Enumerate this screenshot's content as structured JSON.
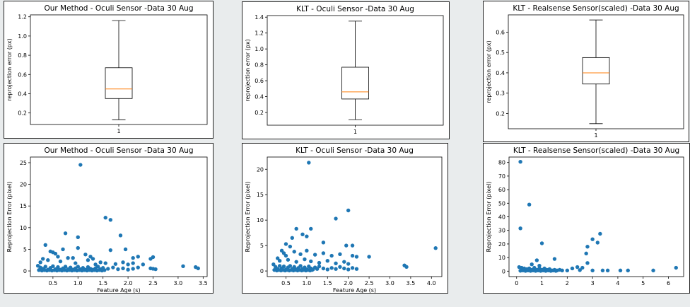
{
  "chart_data": [
    {
      "type": "box",
      "title": "Our Method - Oculi Sensor -Data 30 Aug",
      "ylabel": "reprojection error (px)",
      "xlabel": "",
      "xticks": [
        "1"
      ],
      "ylim": [
        0.08,
        1.22
      ],
      "yticks": [
        "0.2",
        "0.4",
        "0.6",
        "0.8",
        "1.0",
        "1.2"
      ],
      "box": {
        "whisker_low": 0.13,
        "q1": 0.35,
        "median": 0.45,
        "q3": 0.67,
        "whisker_high": 1.16
      }
    },
    {
      "type": "box",
      "title": "KLT - Oculi Sensor -Data 30 Aug",
      "ylabel": "reprojection error (px)",
      "xlabel": "",
      "xticks": [
        "1"
      ],
      "ylim": [
        0.04,
        1.42
      ],
      "yticks": [
        "0.2",
        "0.4",
        "0.6",
        "0.8",
        "1.0",
        "1.2",
        "1.4"
      ],
      "box": {
        "whisker_low": 0.11,
        "q1": 0.37,
        "median": 0.46,
        "q3": 0.77,
        "whisker_high": 1.35
      }
    },
    {
      "type": "box",
      "title": "KLT - Realsense Sensor(scaled) -Data 30 Aug",
      "ylabel": "reprojection error (px)",
      "xlabel": "",
      "xticks": [
        "1"
      ],
      "ylim": [
        0.125,
        0.685
      ],
      "yticks": [
        "0.2",
        "0.3",
        "0.4",
        "0.5",
        "0.6"
      ],
      "box": {
        "whisker_low": 0.15,
        "q1": 0.345,
        "median": 0.4,
        "q3": 0.475,
        "whisker_high": 0.66
      }
    },
    {
      "type": "scatter",
      "title": "Our Method - Oculi Sensor -Data 30 Aug",
      "xlabel": "Feature Age (s)",
      "ylabel": "Reprojection Error (pixel)",
      "xlim": [
        0.05,
        3.58
      ],
      "ylim": [
        -1.3,
        26.3
      ],
      "xticks": [
        "0.5",
        "1.0",
        "1.5",
        "2.0",
        "2.5",
        "3.0",
        "3.5"
      ],
      "yticks": [
        "0",
        "5",
        "10",
        "15",
        "20",
        "25"
      ],
      "points": [
        [
          1.05,
          24.5
        ],
        [
          1.55,
          12.3
        ],
        [
          1.65,
          11.8
        ],
        [
          1.85,
          8.2
        ],
        [
          0.75,
          8.7
        ],
        [
          1.0,
          7.8
        ],
        [
          1.95,
          5.0
        ],
        [
          1.0,
          5.3
        ],
        [
          0.35,
          6.0
        ],
        [
          0.45,
          4.5
        ],
        [
          0.5,
          4.3
        ],
        [
          0.55,
          4.0
        ],
        [
          0.6,
          3.3
        ],
        [
          0.7,
          5.0
        ],
        [
          0.8,
          3.0
        ],
        [
          0.9,
          3.0
        ],
        [
          1.15,
          3.8
        ],
        [
          1.25,
          3.3
        ],
        [
          1.3,
          2.8
        ],
        [
          1.2,
          2.5
        ],
        [
          1.45,
          2.0
        ],
        [
          1.65,
          4.8
        ],
        [
          2.1,
          3.0
        ],
        [
          2.2,
          3.3
        ],
        [
          2.45,
          2.8
        ],
        [
          2.5,
          3.2
        ],
        [
          0.3,
          2.8
        ],
        [
          0.25,
          2.0
        ],
        [
          0.4,
          2.5
        ],
        [
          0.65,
          2.2
        ],
        [
          0.95,
          1.8
        ],
        [
          1.35,
          1.5
        ],
        [
          1.55,
          1.8
        ],
        [
          1.75,
          1.6
        ],
        [
          1.9,
          2.0
        ],
        [
          2.0,
          1.5
        ],
        [
          2.1,
          1.8
        ],
        [
          2.3,
          1.5
        ],
        [
          0.2,
          1.2
        ],
        [
          0.25,
          0.8
        ],
        [
          0.3,
          0.5
        ],
        [
          0.35,
          1.0
        ],
        [
          0.4,
          0.3
        ],
        [
          0.45,
          0.7
        ],
        [
          0.5,
          1.1
        ],
        [
          0.55,
          0.4
        ],
        [
          0.6,
          0.9
        ],
        [
          0.65,
          0.3
        ],
        [
          0.7,
          0.6
        ],
        [
          0.75,
          1.0
        ],
        [
          0.8,
          0.4
        ],
        [
          0.85,
          0.8
        ],
        [
          0.9,
          0.3
        ],
        [
          0.95,
          0.6
        ],
        [
          1.0,
          1.0
        ],
        [
          1.05,
          0.4
        ],
        [
          1.1,
          0.7
        ],
        [
          1.15,
          0.3
        ],
        [
          1.2,
          0.9
        ],
        [
          1.25,
          0.5
        ],
        [
          1.3,
          0.3
        ],
        [
          1.35,
          0.6
        ],
        [
          1.4,
          1.0
        ],
        [
          1.45,
          0.4
        ],
        [
          1.5,
          0.7
        ],
        [
          1.6,
          0.5
        ],
        [
          1.7,
          0.8
        ],
        [
          1.8,
          0.4
        ],
        [
          1.9,
          0.6
        ],
        [
          2.0,
          0.3
        ],
        [
          2.1,
          0.5
        ],
        [
          2.2,
          0.8
        ],
        [
          2.45,
          0.6
        ],
        [
          2.5,
          0.5
        ],
        [
          2.55,
          0.4
        ],
        [
          0.22,
          0.2
        ],
        [
          0.28,
          0.1
        ],
        [
          0.33,
          0.2
        ],
        [
          0.38,
          0.1
        ],
        [
          0.43,
          0.2
        ],
        [
          0.48,
          0.1
        ],
        [
          0.53,
          0.2
        ],
        [
          0.58,
          0.1
        ],
        [
          0.63,
          0.2
        ],
        [
          0.68,
          0.1
        ],
        [
          0.73,
          0.2
        ],
        [
          0.78,
          0.1
        ],
        [
          0.83,
          0.2
        ],
        [
          0.88,
          0.1
        ],
        [
          0.93,
          0.2
        ],
        [
          0.98,
          0.1
        ],
        [
          1.03,
          0.2
        ],
        [
          1.08,
          0.1
        ],
        [
          1.13,
          0.2
        ],
        [
          1.18,
          0.1
        ],
        [
          1.23,
          0.2
        ],
        [
          1.28,
          0.1
        ],
        [
          1.33,
          0.2
        ],
        [
          1.38,
          0.1
        ],
        [
          1.43,
          0.2
        ],
        [
          1.48,
          0.1
        ],
        [
          1.53,
          0.2
        ],
        [
          3.1,
          1.1
        ],
        [
          3.35,
          0.9
        ],
        [
          3.4,
          0.6
        ]
      ]
    },
    {
      "type": "scatter",
      "title": "KLT - Oculi Sensor -Data 30 Aug",
      "xlabel": "Feature Age (s)",
      "ylabel": "Reprojection Error (pixel)",
      "xlim": [
        0.05,
        4.25
      ],
      "ylim": [
        -1.1,
        22.4
      ],
      "xticks": [
        "0.5",
        "1.0",
        "1.5",
        "2.0",
        "2.5",
        "3.0",
        "3.5",
        "4.0"
      ],
      "yticks": [
        "0",
        "5",
        "10",
        "15",
        "20"
      ],
      "points": [
        [
          1.05,
          21.3
        ],
        [
          2.0,
          11.9
        ],
        [
          1.7,
          10.3
        ],
        [
          1.1,
          8.3
        ],
        [
          0.75,
          8.3
        ],
        [
          0.9,
          7.2
        ],
        [
          0.65,
          6.5
        ],
        [
          1.0,
          6.8
        ],
        [
          1.4,
          5.6
        ],
        [
          1.95,
          5.0
        ],
        [
          2.1,
          5.0
        ],
        [
          0.5,
          5.3
        ],
        [
          0.6,
          4.8
        ],
        [
          0.4,
          4.0
        ],
        [
          0.45,
          3.5
        ],
        [
          0.5,
          3.0
        ],
        [
          0.7,
          3.8
        ],
        [
          0.85,
          3.3
        ],
        [
          1.0,
          4.0
        ],
        [
          1.2,
          3.2
        ],
        [
          1.4,
          3.5
        ],
        [
          1.6,
          3.0
        ],
        [
          1.8,
          3.3
        ],
        [
          2.1,
          3.0
        ],
        [
          2.2,
          2.8
        ],
        [
          2.5,
          2.8
        ],
        [
          0.3,
          2.5
        ],
        [
          0.35,
          2.0
        ],
        [
          0.55,
          2.2
        ],
        [
          0.75,
          1.8
        ],
        [
          0.95,
          2.3
        ],
        [
          1.1,
          1.9
        ],
        [
          1.3,
          1.6
        ],
        [
          1.5,
          2.0
        ],
        [
          1.7,
          1.5
        ],
        [
          1.9,
          1.8
        ],
        [
          2.0,
          1.4
        ],
        [
          0.2,
          1.3
        ],
        [
          0.25,
          0.8
        ],
        [
          0.3,
          0.4
        ],
        [
          0.35,
          1.0
        ],
        [
          0.4,
          0.5
        ],
        [
          0.45,
          0.9
        ],
        [
          0.5,
          0.3
        ],
        [
          0.55,
          0.7
        ],
        [
          0.6,
          1.0
        ],
        [
          0.65,
          0.4
        ],
        [
          0.7,
          0.8
        ],
        [
          0.75,
          0.3
        ],
        [
          0.8,
          0.6
        ],
        [
          0.85,
          1.0
        ],
        [
          0.9,
          0.4
        ],
        [
          0.95,
          0.7
        ],
        [
          1.0,
          0.3
        ],
        [
          1.05,
          0.9
        ],
        [
          1.1,
          0.5
        ],
        [
          1.15,
          0.3
        ],
        [
          1.2,
          0.7
        ],
        [
          1.25,
          0.4
        ],
        [
          1.3,
          0.9
        ],
        [
          1.4,
          0.5
        ],
        [
          1.5,
          0.3
        ],
        [
          1.6,
          0.6
        ],
        [
          1.7,
          0.4
        ],
        [
          1.8,
          0.8
        ],
        [
          1.9,
          0.5
        ],
        [
          2.0,
          0.3
        ],
        [
          2.1,
          0.6
        ],
        [
          2.2,
          0.4
        ],
        [
          0.22,
          0.2
        ],
        [
          0.28,
          0.1
        ],
        [
          0.33,
          0.2
        ],
        [
          0.38,
          0.1
        ],
        [
          0.43,
          0.2
        ],
        [
          0.48,
          0.1
        ],
        [
          0.53,
          0.2
        ],
        [
          0.58,
          0.1
        ],
        [
          0.63,
          0.2
        ],
        [
          0.68,
          0.1
        ],
        [
          0.73,
          0.2
        ],
        [
          0.78,
          0.1
        ],
        [
          0.83,
          0.2
        ],
        [
          0.88,
          0.1
        ],
        [
          0.93,
          0.2
        ],
        [
          0.98,
          0.1
        ],
        [
          1.03,
          0.2
        ],
        [
          1.08,
          0.1
        ],
        [
          1.13,
          0.2
        ],
        [
          3.35,
          1.1
        ],
        [
          3.4,
          0.8
        ],
        [
          4.1,
          4.5
        ]
      ]
    },
    {
      "type": "scatter",
      "title": "KLT - Realsense Sensor(scaled) -Data 30 Aug",
      "xlabel": "",
      "ylabel": "Reprojection Error (pixel)",
      "xlim": [
        -0.3,
        6.6
      ],
      "ylim": [
        -4,
        84
      ],
      "xticks": [
        "0",
        "1",
        "2",
        "3",
        "4",
        "5",
        "6"
      ],
      "yticks": [
        "0",
        "10",
        "20",
        "30",
        "40",
        "50",
        "60",
        "70",
        "80"
      ],
      "points": [
        [
          0.15,
          80.5
        ],
        [
          0.5,
          49
        ],
        [
          0.15,
          31.5
        ],
        [
          3.3,
          27.5
        ],
        [
          3.0,
          23.5
        ],
        [
          3.2,
          21
        ],
        [
          1.0,
          20.5
        ],
        [
          2.8,
          18
        ],
        [
          2.75,
          13
        ],
        [
          1.5,
          9
        ],
        [
          0.8,
          8
        ],
        [
          2.8,
          6
        ],
        [
          0.6,
          5
        ],
        [
          0.9,
          4
        ],
        [
          2.4,
          3
        ],
        [
          2.2,
          2
        ],
        [
          2.6,
          2.5
        ],
        [
          0.1,
          3
        ],
        [
          0.2,
          2.5
        ],
        [
          0.3,
          2
        ],
        [
          0.4,
          1.5
        ],
        [
          0.5,
          2
        ],
        [
          0.6,
          1
        ],
        [
          0.7,
          2.5
        ],
        [
          0.8,
          1
        ],
        [
          0.9,
          2
        ],
        [
          1.0,
          1
        ],
        [
          1.1,
          2
        ],
        [
          1.2,
          1
        ],
        [
          1.3,
          1.5
        ],
        [
          1.4,
          0.5
        ],
        [
          1.5,
          1
        ],
        [
          1.6,
          0.5
        ],
        [
          1.7,
          1
        ],
        [
          1.8,
          0.5
        ],
        [
          0.15,
          0.3
        ],
        [
          0.25,
          0.5
        ],
        [
          0.35,
          0.2
        ],
        [
          0.45,
          0.5
        ],
        [
          0.55,
          0.2
        ],
        [
          0.65,
          0.5
        ],
        [
          0.75,
          0.2
        ],
        [
          0.85,
          0.5
        ],
        [
          0.95,
          0.2
        ],
        [
          1.05,
          0.5
        ],
        [
          1.15,
          0.2
        ],
        [
          1.25,
          0.5
        ],
        [
          1.35,
          0.2
        ],
        [
          1.45,
          0.5
        ],
        [
          1.55,
          0.2
        ],
        [
          2.0,
          0.5
        ],
        [
          2.5,
          0.8
        ],
        [
          3.0,
          0.5
        ],
        [
          3.4,
          0.5
        ],
        [
          3.6,
          0.5
        ],
        [
          4.1,
          0.5
        ],
        [
          4.4,
          0.5
        ],
        [
          5.4,
          0.5
        ],
        [
          6.3,
          2.5
        ]
      ]
    }
  ]
}
